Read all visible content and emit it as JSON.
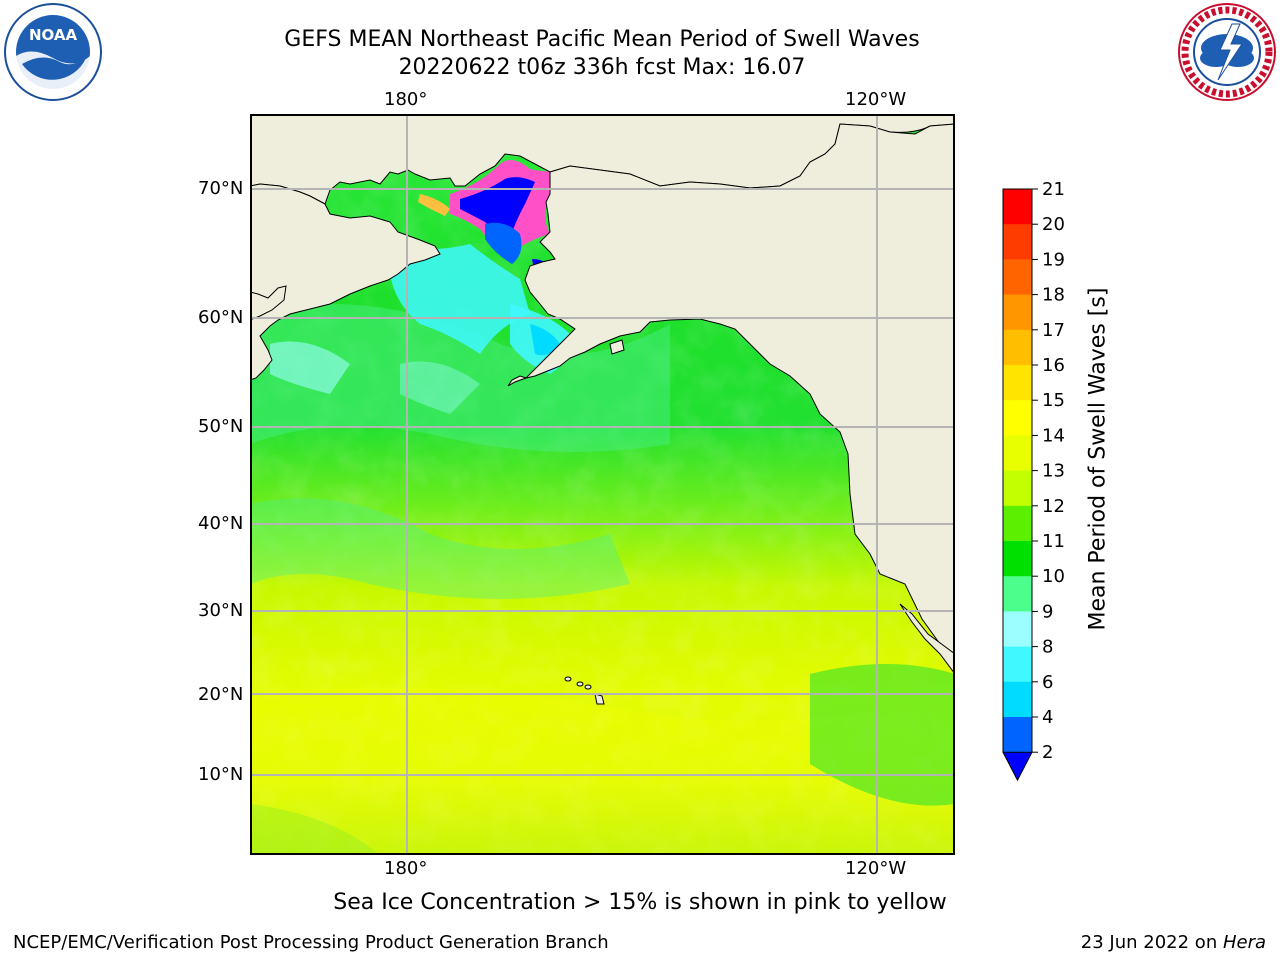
{
  "header": {
    "title_line1": "GEFS MEAN Northeast Pacific Mean Period of Swell Waves",
    "title_line2": "20220622 t06z 336h fcst   Max: 16.07"
  },
  "logos": {
    "left": {
      "icon": "noaa-logo",
      "text": "NOAA",
      "ring_text": "NATIONAL OCEANIC AND ATMOSPHERIC ADMINISTRATION · U.S. DEPARTMENT OF COMMERCE"
    },
    "right": {
      "icon": "nws-logo",
      "ring_text": "NATIONAL WEATHER SERVICE"
    }
  },
  "map": {
    "projection": "Mercator",
    "lon_labels_top": [
      "180°",
      "120°W"
    ],
    "lon_labels_bottom": [
      "180°",
      "120°W"
    ],
    "lat_labels": [
      "70°N",
      "60°N",
      "50°N",
      "40°N",
      "30°N",
      "20°N",
      "10°N"
    ],
    "colors": {
      "land": "#efeedd",
      "grid": "#b4b4b4",
      "coast": "#000000"
    }
  },
  "colorbar": {
    "label": "Mean Period of Swell Waves [s]",
    "ticks": [
      "2",
      "4",
      "6",
      "8",
      "9",
      "10",
      "11",
      "12",
      "13",
      "14",
      "15",
      "16",
      "17",
      "18",
      "19",
      "20",
      "21"
    ],
    "colors": [
      "#0064ff",
      "#00dcff",
      "#40f8ff",
      "#9cffff",
      "#4cff8c",
      "#00e000",
      "#5cf000",
      "#c4ff00",
      "#e8ff00",
      "#ffff00",
      "#ffe400",
      "#ffbe00",
      "#ff9600",
      "#ff6400",
      "#ff3c00",
      "#ff0000"
    ],
    "under_color": "#0000ff"
  },
  "footer": {
    "caption": "Sea Ice Concentration > 15% is shown in pink to yellow",
    "credit": "NCEP/EMC/Verification Post Processing Product Generation Branch",
    "date": "23 Jun 2022 on ",
    "host": "Hera"
  }
}
